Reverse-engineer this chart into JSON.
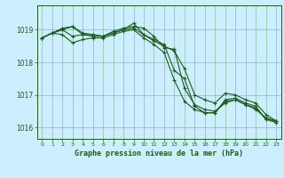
{
  "title": "Graphe pression niveau de la mer (hPa)",
  "background_color": "#cceeff",
  "grid_color": "#88bbaa",
  "line_color": "#1a5c1a",
  "ylim": [
    1015.65,
    1019.75
  ],
  "xlim": [
    -0.5,
    23.5
  ],
  "yticks": [
    1016,
    1017,
    1018,
    1019
  ],
  "xticks": [
    0,
    1,
    2,
    3,
    4,
    5,
    6,
    7,
    8,
    9,
    10,
    11,
    12,
    13,
    14,
    15,
    16,
    17,
    18,
    19,
    20,
    21,
    22,
    23
  ],
  "series": [
    [
      1018.75,
      1018.9,
      1019.0,
      1019.1,
      1018.9,
      1018.85,
      1018.8,
      1018.9,
      1019.0,
      1019.05,
      1018.85,
      1018.7,
      1018.55,
      1017.75,
      1017.5,
      1016.65,
      1016.45,
      1016.45,
      1016.85,
      1016.9,
      1016.75,
      1016.65,
      1016.25,
      1016.2
    ],
    [
      1018.75,
      1018.9,
      1019.0,
      1018.8,
      1018.85,
      1018.85,
      1018.8,
      1018.95,
      1019.05,
      1019.1,
      1019.05,
      1018.8,
      1018.45,
      1018.4,
      1017.2,
      1016.7,
      1016.55,
      1016.5,
      1016.75,
      1016.85,
      1016.7,
      1016.55,
      1016.3,
      1016.2
    ],
    [
      1018.75,
      1018.9,
      1019.05,
      1019.1,
      1018.85,
      1018.8,
      1018.8,
      1018.9,
      1019.0,
      1019.2,
      1018.85,
      1018.65,
      1018.5,
      1018.35,
      1017.8,
      1017.0,
      1016.85,
      1016.75,
      1017.05,
      1017.0,
      1016.85,
      1016.75,
      1016.4,
      1016.2
    ],
    [
      1018.75,
      1018.9,
      1018.85,
      1018.6,
      1018.7,
      1018.75,
      1018.75,
      1018.85,
      1018.95,
      1019.0,
      1018.75,
      1018.55,
      1018.3,
      1017.45,
      1016.8,
      1016.55,
      1016.45,
      1016.45,
      1016.8,
      1016.85,
      1016.7,
      1016.6,
      1016.25,
      1016.15
    ]
  ]
}
